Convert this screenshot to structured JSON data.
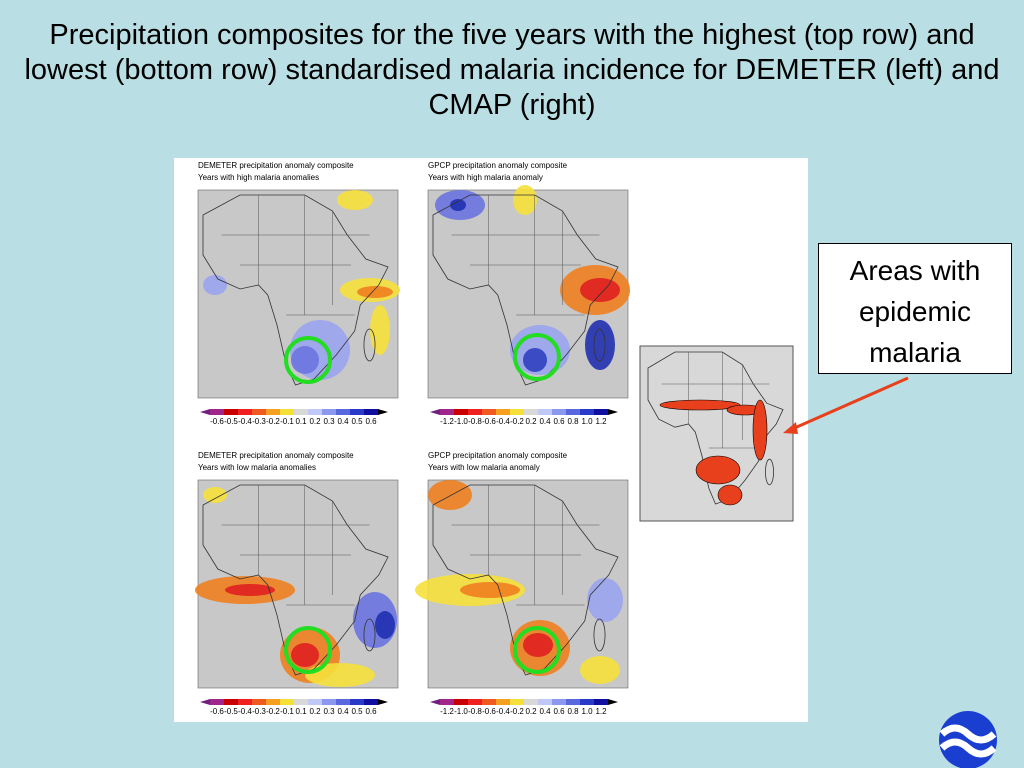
{
  "title": "Precipitation composites for the five years with the highest (top row) and lowest (bottom row) standardised malaria incidence for DEMETER (left) and CMAP (right)",
  "panels": [
    {
      "heading": [
        "DEMETER precipitation anomaly composite",
        "Years with high malaria anomalies"
      ],
      "colorbar": [
        "-0.6",
        "-0.5",
        "-0.4",
        "-0.3",
        "-0.2",
        "-0.1",
        "0.1",
        "0.2",
        "0.3",
        "0.4",
        "0.5",
        "0.6"
      ]
    },
    {
      "heading": [
        "GPCP precipitation anomaly composite",
        "Years with high malaria anomaly"
      ],
      "colorbar": [
        "-1.2",
        "-1.0",
        "-0.8",
        "-0.6",
        "-0.4",
        "-0.2",
        "0.2",
        "0.4",
        "0.6",
        "0.8",
        "1.0",
        "1.2"
      ]
    },
    {
      "heading": [
        "DEMETER precipitation anomaly composite",
        "Years with low malaria anomalies"
      ],
      "colorbar": [
        "-0.6",
        "-0.5",
        "-0.4",
        "-0.3",
        "-0.2",
        "-0.1",
        "0.1",
        "0.2",
        "0.3",
        "0.4",
        "0.5",
        "0.6"
      ]
    },
    {
      "heading": [
        "GPCP precipitation anomaly composite",
        "Years with low malaria anomaly"
      ],
      "colorbar": [
        "-1.2",
        "-1.0",
        "-0.8",
        "-0.6",
        "-0.4",
        "-0.2",
        "0.2",
        "0.4",
        "0.6",
        "0.8",
        "1.0",
        "1.2"
      ]
    }
  ],
  "callout": "Areas with epidemic malaria"
}
